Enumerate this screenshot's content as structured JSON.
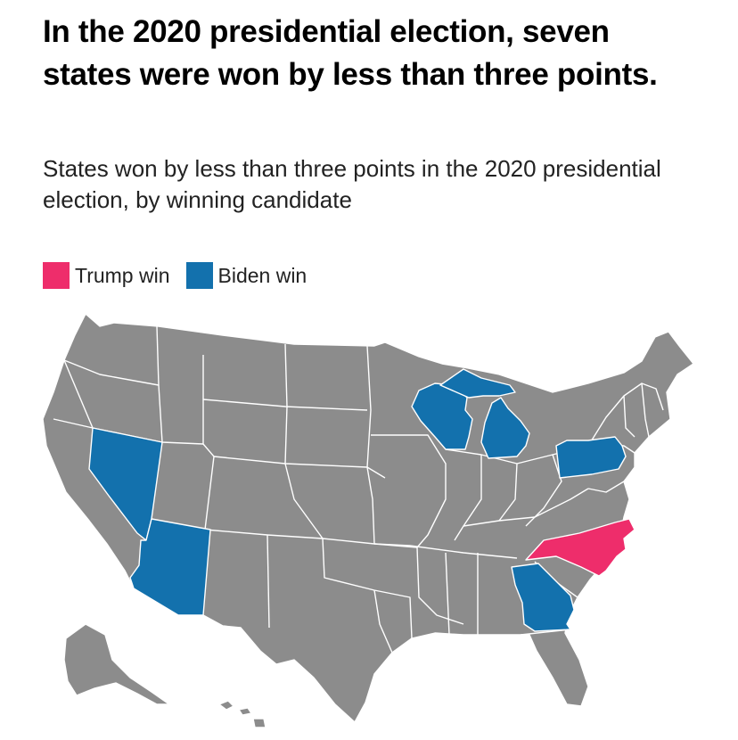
{
  "header": {
    "title": "In the 2020 presidential election, seven states were won by less than three points.",
    "subtitle": "States won by less than three points in the 2020 presidential election, by winning candidate"
  },
  "legend": {
    "items": [
      {
        "label": "Trump win",
        "color": "#ee2d6b"
      },
      {
        "label": "Biden win",
        "color": "#1371ad"
      }
    ]
  },
  "colors": {
    "background": "#ffffff",
    "land": "#8c8c8c",
    "borders": "#ffffff"
  },
  "map": {
    "region": "United States",
    "highlighted_states": [
      {
        "state": "Nevada",
        "winner": "Biden win"
      },
      {
        "state": "Arizona",
        "winner": "Biden win"
      },
      {
        "state": "Wisconsin",
        "winner": "Biden win"
      },
      {
        "state": "Michigan",
        "winner": "Biden win"
      },
      {
        "state": "Pennsylvania",
        "winner": "Biden win"
      },
      {
        "state": "Georgia",
        "winner": "Biden win"
      },
      {
        "state": "North Carolina",
        "winner": "Trump win"
      }
    ]
  }
}
